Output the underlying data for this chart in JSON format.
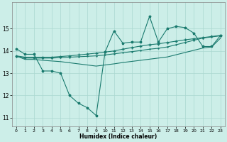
{
  "xlabel": "Humidex (Indice chaleur)",
  "bg_color": "#cceee8",
  "grid_color": "#aad8d0",
  "line_color": "#1a7a6e",
  "xlim": [
    -0.5,
    23.5
  ],
  "ylim": [
    10.6,
    16.2
  ],
  "xticks": [
    0,
    1,
    2,
    3,
    4,
    5,
    6,
    7,
    8,
    9,
    10,
    11,
    12,
    13,
    14,
    15,
    16,
    17,
    18,
    19,
    20,
    21,
    22,
    23
  ],
  "yticks": [
    11,
    12,
    13,
    14,
    15
  ],
  "series": {
    "line1_x": [
      0,
      1,
      2,
      3,
      4,
      5,
      6,
      7,
      8,
      9,
      10,
      11,
      12,
      13,
      14,
      15,
      16,
      17,
      18,
      19,
      20,
      21,
      22,
      23
    ],
    "line1_y": [
      14.1,
      13.85,
      13.85,
      13.1,
      13.1,
      13.0,
      12.0,
      11.65,
      11.45,
      11.1,
      13.95,
      14.9,
      14.35,
      14.4,
      14.4,
      15.55,
      14.4,
      15.0,
      15.1,
      15.05,
      14.8,
      14.2,
      14.2,
      14.7
    ],
    "line2_x": [
      0,
      1,
      2,
      3,
      4,
      5,
      6,
      7,
      8,
      9,
      10,
      11,
      12,
      13,
      14,
      15,
      16,
      17,
      18,
      19,
      20,
      21,
      22,
      23
    ],
    "line2_y": [
      13.78,
      13.72,
      13.72,
      13.72,
      13.72,
      13.75,
      13.78,
      13.82,
      13.86,
      13.9,
      13.95,
      14.0,
      14.08,
      14.15,
      14.22,
      14.28,
      14.32,
      14.38,
      14.44,
      14.5,
      14.55,
      14.6,
      14.65,
      14.7
    ],
    "line3_x": [
      0,
      1,
      2,
      3,
      4,
      5,
      6,
      7,
      8,
      9,
      10,
      11,
      12,
      13,
      14,
      15,
      16,
      17,
      18,
      19,
      20,
      21,
      22,
      23
    ],
    "line3_y": [
      13.75,
      13.68,
      13.68,
      13.68,
      13.68,
      13.7,
      13.72,
      13.74,
      13.76,
      13.78,
      13.82,
      13.87,
      13.92,
      13.97,
      14.02,
      14.08,
      14.12,
      14.18,
      14.28,
      14.38,
      14.48,
      14.58,
      14.63,
      14.68
    ],
    "line4_x": [
      0,
      1,
      2,
      3,
      4,
      5,
      6,
      7,
      8,
      9,
      10,
      11,
      12,
      13,
      14,
      15,
      16,
      17,
      18,
      19,
      20,
      21,
      22,
      23
    ],
    "line4_y": [
      13.78,
      13.62,
      13.62,
      13.58,
      13.55,
      13.52,
      13.47,
      13.42,
      13.37,
      13.32,
      13.37,
      13.42,
      13.48,
      13.53,
      13.58,
      13.63,
      13.68,
      13.73,
      13.83,
      13.93,
      14.03,
      14.13,
      14.18,
      14.58
    ]
  }
}
